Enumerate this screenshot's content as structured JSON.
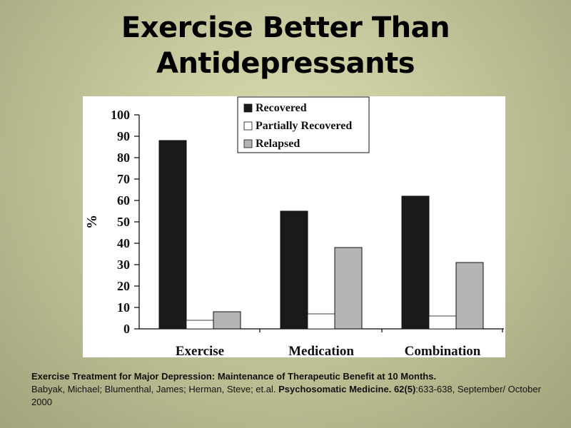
{
  "slide": {
    "title_line1": "Exercise Better Than",
    "title_line2": "Antidepressants"
  },
  "citation": {
    "title": "Exercise Treatment for Major Depression:  Maintenance of Therapeutic Benefit at 10 Months.",
    "authors": "Babyak, Michael; Blumenthal, James; Herman, Steve; et.al. ",
    "journal": "Psychosomatic Medicine. 62(5)",
    "pages_and_date": ":633-638, September/ October 2000"
  },
  "chart_data": {
    "type": "bar",
    "categories": [
      "Exercise",
      "Medication",
      "Combination"
    ],
    "series": [
      {
        "name": "Recovered",
        "values": [
          88,
          55,
          62
        ],
        "color": "#1a1a1a"
      },
      {
        "name": "Partially Recovered",
        "values": [
          4,
          7,
          6
        ],
        "color": "#ffffff"
      },
      {
        "name": "Relapsed",
        "values": [
          8,
          38,
          31
        ],
        "color": "#b4b4b4"
      }
    ],
    "ylabel": "%",
    "ylim": [
      0,
      100
    ],
    "yticks": [
      "0",
      "10",
      "20",
      "30",
      "40",
      "50",
      "60",
      "70",
      "80",
      "90",
      "100"
    ],
    "legend_position": "top-right",
    "grid": false
  }
}
